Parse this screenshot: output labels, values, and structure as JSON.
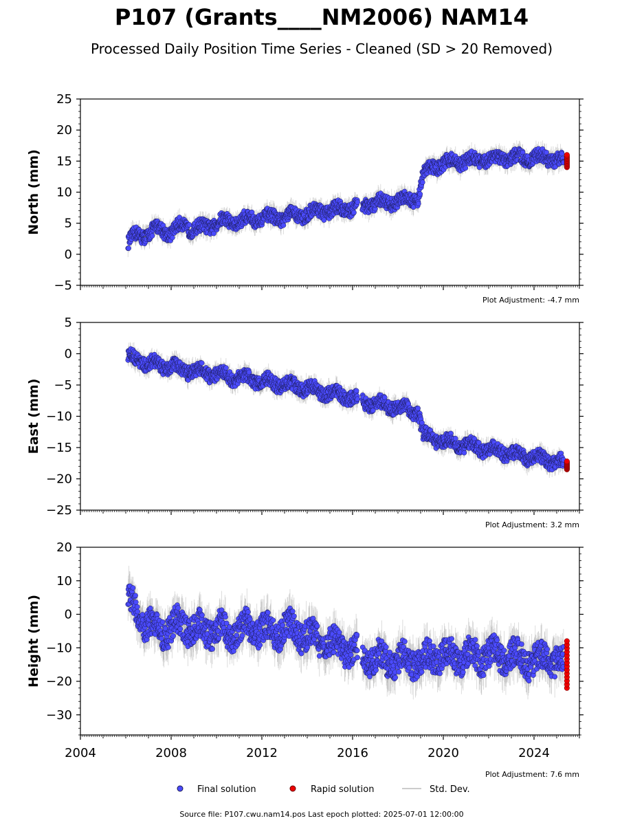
{
  "title": "P107 (Grants____NM2006) NAM14",
  "subtitle": "Processed Daily Position Time Series - Cleaned (SD > 20 Removed)",
  "colors": {
    "final": "#4b4bff",
    "final_edge": "#1a1a50",
    "rapid": "#ee0000",
    "stddev": "#9a9a9a",
    "axis": "#000000"
  },
  "legend": {
    "final_label": "Final solution",
    "rapid_label": "Rapid solution",
    "stddev_label": "Std. Dev."
  },
  "footer": "Source file: P107.cwu.nam14.pos  Last epoch plotted: 2025-07-01 12:00:00",
  "chart_data": [
    {
      "type": "scatter",
      "ylabel": "North (mm)",
      "ylim": [
        -5,
        25
      ],
      "yticks": [
        -5,
        0,
        5,
        10,
        15,
        20,
        25
      ],
      "xlim": [
        2004,
        2026
      ],
      "xticks": [
        2004,
        2008,
        2012,
        2016,
        2020,
        2024
      ],
      "show_xtick_labels": false,
      "adjustment": "Plot Adjustment: -4.7 mm",
      "series": [
        {
          "name": "Final solution",
          "x": [
            2006.1,
            2006.5,
            2007.0,
            2007.5,
            2008.0,
            2008.5,
            2009.0,
            2009.5,
            2010.0,
            2010.5,
            2011.0,
            2011.5,
            2012.0,
            2012.5,
            2013.0,
            2013.5,
            2014.0,
            2014.5,
            2015.0,
            2015.5,
            2016.0,
            2016.2,
            2016.5,
            2017.0,
            2017.5,
            2018.0,
            2018.5,
            2018.9,
            2019.1,
            2019.5,
            2020.0,
            2020.5,
            2021.0,
            2021.5,
            2022.0,
            2022.5,
            2023.0,
            2023.5,
            2024.0,
            2024.5,
            2025.0,
            2025.3
          ],
          "y": [
            1.5,
            3.5,
            3.0,
            4.5,
            3.2,
            5.0,
            3.8,
            4.6,
            4.8,
            5.6,
            5.0,
            6.0,
            5.5,
            6.2,
            5.8,
            6.5,
            6.3,
            7.2,
            6.8,
            7.5,
            7.3,
            7.8,
            8.0,
            8.2,
            8.4,
            8.6,
            9.0,
            9.2,
            12.5,
            14.2,
            14.5,
            15.0,
            15.0,
            15.2,
            15.3,
            15.5,
            15.4,
            15.6,
            15.5,
            15.6,
            15.2,
            15.0
          ]
        },
        {
          "name": "Rapid solution",
          "x": [
            2025.4,
            2025.45,
            2025.5
          ],
          "y": [
            14.0,
            15.2,
            16.0
          ]
        }
      ]
    },
    {
      "type": "scatter",
      "ylabel": "East (mm)",
      "ylim": [
        -25,
        5
      ],
      "yticks": [
        -25,
        -20,
        -15,
        -10,
        -5,
        0,
        5
      ],
      "xlim": [
        2004,
        2026
      ],
      "xticks": [
        2004,
        2008,
        2012,
        2016,
        2020,
        2024
      ],
      "show_xtick_labels": false,
      "adjustment": "Plot Adjustment: 3.2 mm",
      "series": [
        {
          "name": "Final solution",
          "x": [
            2006.1,
            2006.5,
            2007.0,
            2007.5,
            2008.0,
            2008.5,
            2009.0,
            2009.5,
            2010.0,
            2010.5,
            2011.0,
            2011.5,
            2012.0,
            2012.5,
            2013.0,
            2013.5,
            2014.0,
            2014.5,
            2015.0,
            2015.5,
            2016.0,
            2016.2,
            2016.5,
            2017.0,
            2017.5,
            2018.0,
            2018.5,
            2018.9,
            2019.1,
            2019.5,
            2020.0,
            2020.5,
            2021.0,
            2021.5,
            2022.0,
            2022.5,
            2023.0,
            2023.5,
            2024.0,
            2024.5,
            2025.0,
            2025.3
          ],
          "y": [
            -0.5,
            -1.0,
            -1.5,
            -1.8,
            -2.0,
            -2.5,
            -2.8,
            -3.0,
            -3.3,
            -3.6,
            -3.8,
            -4.0,
            -4.4,
            -4.6,
            -4.9,
            -5.2,
            -5.5,
            -6.0,
            -6.3,
            -6.6,
            -7.0,
            -7.4,
            -7.8,
            -8.0,
            -8.3,
            -8.6,
            -8.9,
            -9.2,
            -13.0,
            -13.5,
            -14.0,
            -14.3,
            -14.6,
            -15.0,
            -15.3,
            -15.6,
            -16.0,
            -16.3,
            -16.6,
            -17.0,
            -17.2,
            -17.5
          ]
        },
        {
          "name": "Rapid solution",
          "x": [
            2025.4,
            2025.45,
            2025.5
          ],
          "y": [
            -17.2,
            -17.8,
            -18.5
          ]
        }
      ]
    },
    {
      "type": "scatter",
      "ylabel": "Height (mm)",
      "ylim": [
        -36,
        20
      ],
      "yticks": [
        -30,
        -20,
        -10,
        0,
        10,
        20
      ],
      "xlim": [
        2004,
        2026
      ],
      "xticks": [
        2004,
        2008,
        2012,
        2016,
        2020,
        2024
      ],
      "show_xtick_labels": true,
      "adjustment": "Plot Adjustment: 7.6 mm",
      "series": [
        {
          "name": "Final solution",
          "x": [
            2006.1,
            2006.5,
            2007.0,
            2007.5,
            2008.0,
            2008.5,
            2009.0,
            2009.5,
            2010.0,
            2010.5,
            2011.0,
            2011.5,
            2012.0,
            2012.5,
            2013.0,
            2013.5,
            2014.0,
            2014.5,
            2015.0,
            2015.5,
            2016.0,
            2016.2,
            2016.5,
            2017.0,
            2017.5,
            2018.0,
            2018.5,
            2018.9,
            2019.1,
            2019.5,
            2020.0,
            2020.5,
            2021.0,
            2021.5,
            2022.0,
            2022.5,
            2023.0,
            2023.5,
            2024.0,
            2024.5,
            2025.0,
            2025.3
          ],
          "y": [
            5.0,
            0.0,
            -3.0,
            -5.0,
            -4.0,
            -3.0,
            -4.5,
            -5.0,
            -4.0,
            -6.0,
            -5.0,
            -4.0,
            -4.5,
            -5.5,
            -4.0,
            -5.0,
            -6.0,
            -8.0,
            -8.5,
            -10.0,
            -11.0,
            -12.0,
            -13.0,
            -13.0,
            -14.0,
            -13.5,
            -14.0,
            -13.0,
            -14.0,
            -13.0,
            -12.0,
            -13.0,
            -12.0,
            -13.0,
            -11.5,
            -13.0,
            -12.0,
            -13.5,
            -14.0,
            -13.0,
            -13.5,
            -15.0
          ]
        },
        {
          "name": "Rapid solution",
          "x": [
            2025.4,
            2025.45,
            2025.5
          ],
          "y": [
            -8.0,
            -15.0,
            -22.0
          ]
        }
      ]
    }
  ]
}
